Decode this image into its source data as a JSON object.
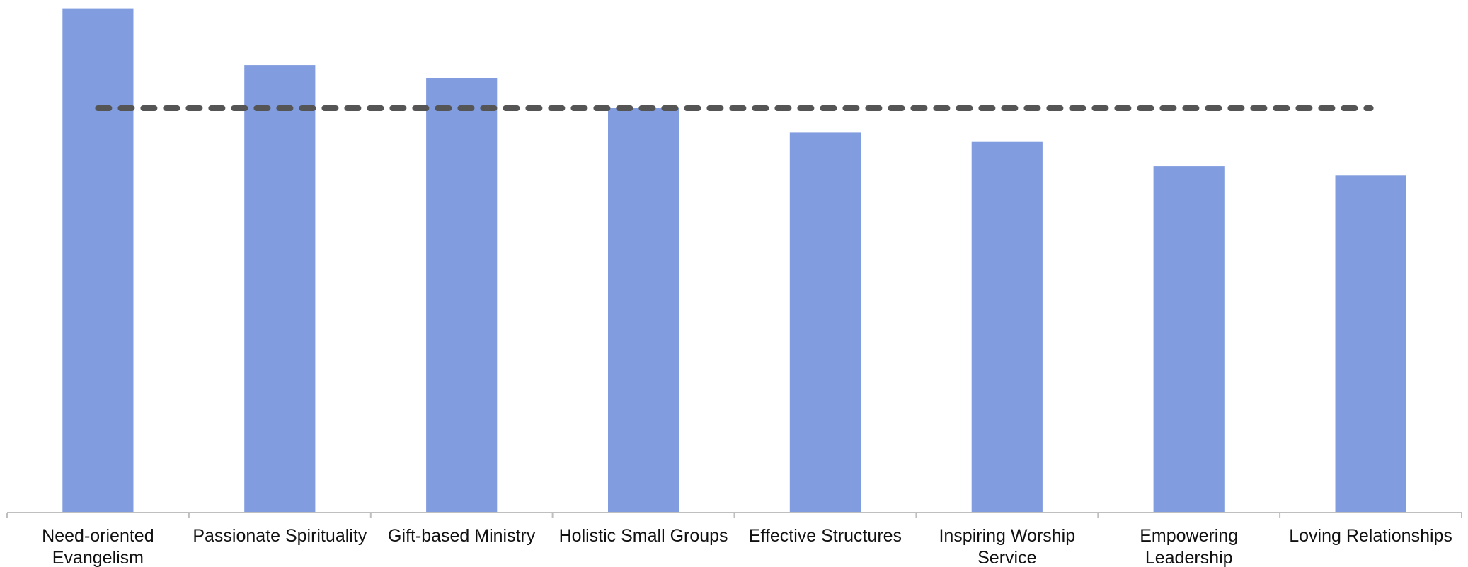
{
  "chart_data": {
    "type": "bar",
    "categories": [
      [
        "Need-oriented",
        "Evangelism"
      ],
      [
        "Passionate Spirituality"
      ],
      [
        "Gift-based Ministry"
      ],
      [
        "Holistic Small Groups"
      ],
      [
        "Effective Structures"
      ],
      [
        "Inspiring Worship",
        "Service"
      ],
      [
        "Empowering",
        "Leadership"
      ],
      [
        "Loving Relationships"
      ]
    ],
    "values": [
      53.8,
      47.8,
      46.4,
      43.2,
      40.6,
      39.6,
      37.0,
      36.0
    ],
    "reference_line": {
      "value": 43.2,
      "style": "dashed",
      "color": "#555555"
    },
    "ylim": [
      0,
      54
    ],
    "grid": false,
    "legend": "none",
    "colors": {
      "bar": "#819ddf",
      "axis": "#bfbfbf",
      "text": "#111111"
    }
  }
}
